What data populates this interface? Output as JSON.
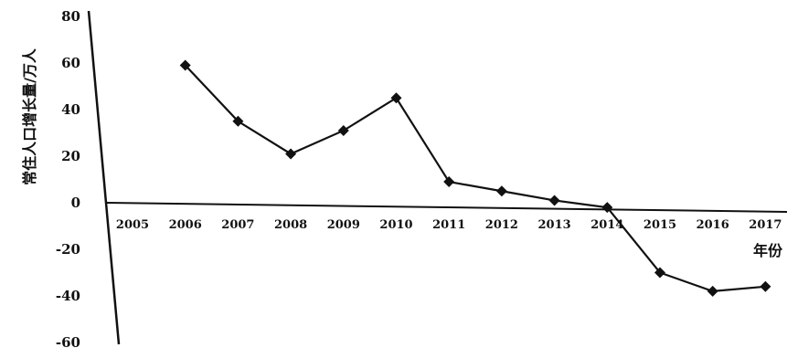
{
  "chart_data": {
    "type": "line",
    "title": "",
    "ylabel": "常住人口增长量/万人",
    "xlabel": "年份",
    "categories": [
      "2005",
      "2006",
      "2007",
      "2008",
      "2009",
      "2010",
      "2011",
      "2012",
      "2013",
      "2014",
      "2015",
      "2016",
      "2017"
    ],
    "yticks": [
      "80",
      "60",
      "40",
      "20",
      "0",
      "-20",
      "-40",
      "-60"
    ],
    "ylim": [
      -60,
      80
    ],
    "series": [
      {
        "x": [
          "2006",
          "2007",
          "2008",
          "2009",
          "2010",
          "2011",
          "2012",
          "2013",
          "2014",
          "2015",
          "2016",
          "2017"
        ],
        "values": [
          59,
          35,
          21,
          31,
          45,
          9,
          5,
          1,
          -2,
          -30,
          -38,
          -36
        ]
      }
    ],
    "grid": false,
    "legend": "none",
    "line_color": "#111111"
  }
}
